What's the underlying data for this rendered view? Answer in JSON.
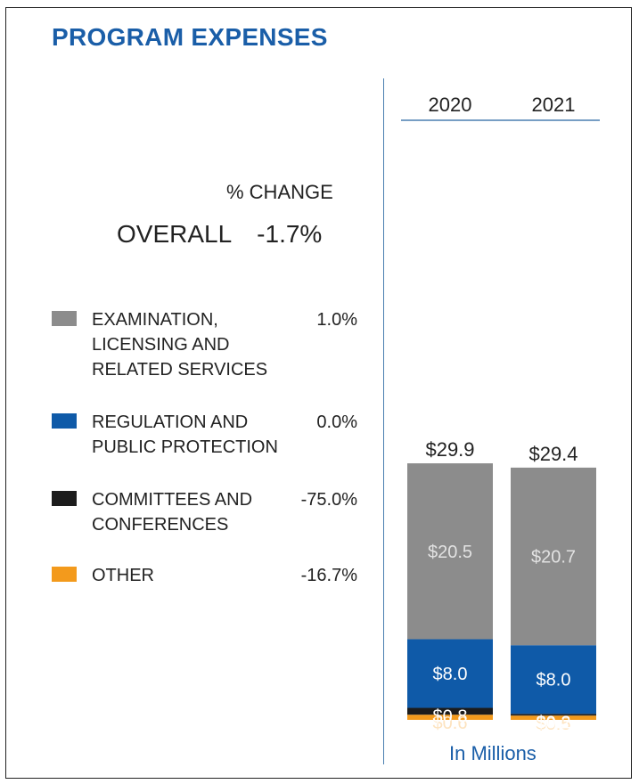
{
  "title": "PROGRAM EXPENSES",
  "pct_change_header": "% CHANGE",
  "overall": {
    "label": "OVERALL",
    "value": "-1.7%"
  },
  "units": "In Millions",
  "legend": [
    {
      "lines": [
        "EXAMINATION,",
        "LICENSING AND",
        "RELATED SERVICES"
      ],
      "pct": "1.0%",
      "color": "#8c8c8c"
    },
    {
      "lines": [
        "REGULATION AND",
        "PUBLIC PROTECTION"
      ],
      "pct": "0.0%",
      "color": "#0f5aa8"
    },
    {
      "lines": [
        "COMMITTEES AND",
        "CONFERENCES"
      ],
      "pct": "-75.0%",
      "color": "#1c1c1c"
    },
    {
      "lines": [
        "OTHER"
      ],
      "pct": "-16.7%",
      "color": "#f39a1c"
    }
  ],
  "chart_data": {
    "type": "bar",
    "stacked": true,
    "categories": [
      "2020",
      "2021"
    ],
    "totals": [
      29.9,
      29.4
    ],
    "total_labels": [
      "$29.9",
      "$29.4"
    ],
    "series": [
      {
        "values": [
          0.6,
          0.5
        ],
        "labels": [
          "$0.6",
          "$0.5"
        ],
        "color": "#f39a1c",
        "label_color": "#fde3bf"
      },
      {
        "values": [
          0.8,
          0.2
        ],
        "labels": [
          "$0.8",
          "$0.2"
        ],
        "color": "#1c1c1c",
        "label_color": "#ffffff"
      },
      {
        "values": [
          8.0,
          8.0
        ],
        "labels": [
          "$8.0",
          "$8.0"
        ],
        "color": "#0f5aa8",
        "label_color": "#ffffff"
      },
      {
        "values": [
          20.5,
          20.7
        ],
        "labels": [
          "$20.5",
          "$20.7"
        ],
        "color": "#8c8c8c",
        "label_color": "#e2e2e2"
      }
    ],
    "ylim": [
      0,
      29.9
    ]
  }
}
